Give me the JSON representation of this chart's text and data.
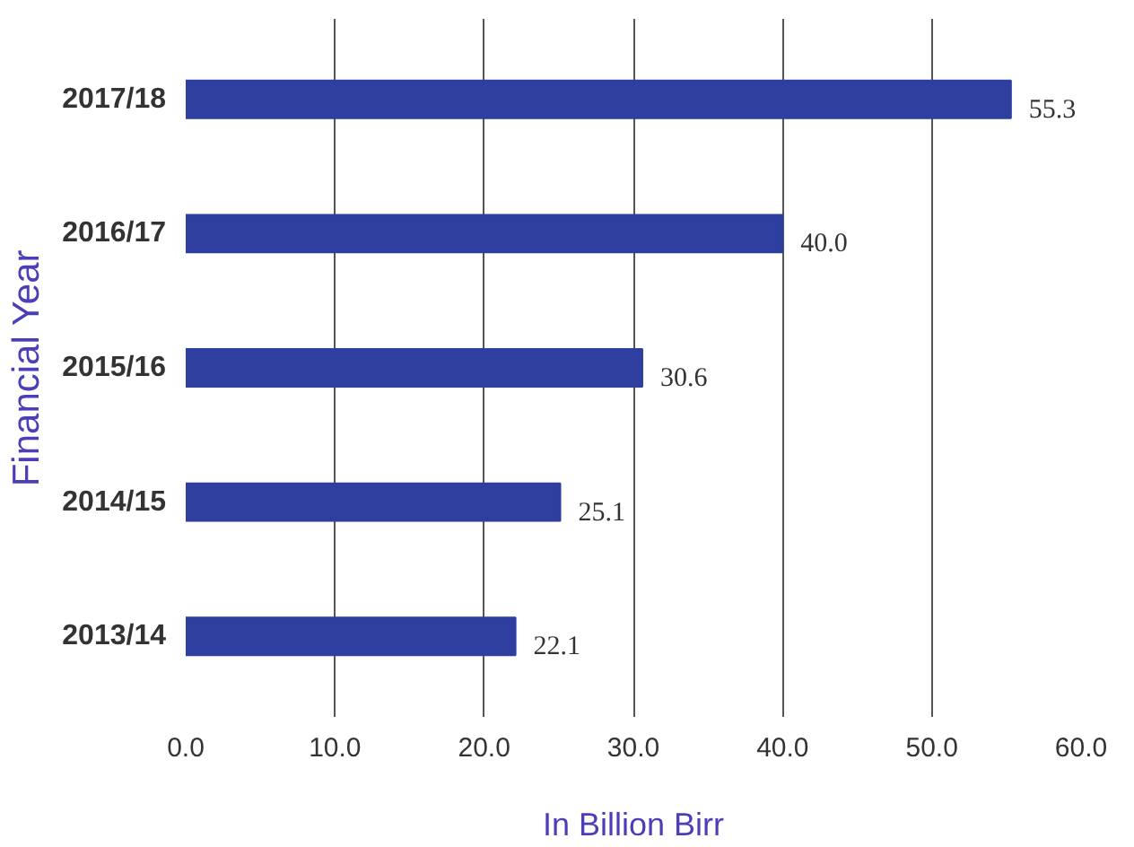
{
  "chart_data": {
    "type": "bar",
    "orientation": "horizontal",
    "xlabel": "In Billion Birr",
    "ylabel": "Financial Year",
    "categories": [
      "2017/18",
      "2016/17",
      "2015/16",
      "2014/15",
      "2013/14"
    ],
    "values": [
      55.3,
      40.0,
      30.6,
      25.1,
      22.1
    ],
    "value_labels": [
      "55.3",
      "40.0",
      "30.6",
      "25.1",
      "22.1"
    ],
    "color": "#2f3f9f",
    "xlim": [
      0,
      60
    ],
    "xticks": [
      {
        "value": 0,
        "label": "0.0"
      },
      {
        "value": 10,
        "label": "10.0"
      },
      {
        "value": 20,
        "label": "20.0"
      },
      {
        "value": 30,
        "label": "30.0"
      },
      {
        "value": 40,
        "label": "40.0"
      },
      {
        "value": 50,
        "label": "50.0"
      },
      {
        "value": 60,
        "label": "60.0"
      }
    ],
    "grid": "x"
  }
}
